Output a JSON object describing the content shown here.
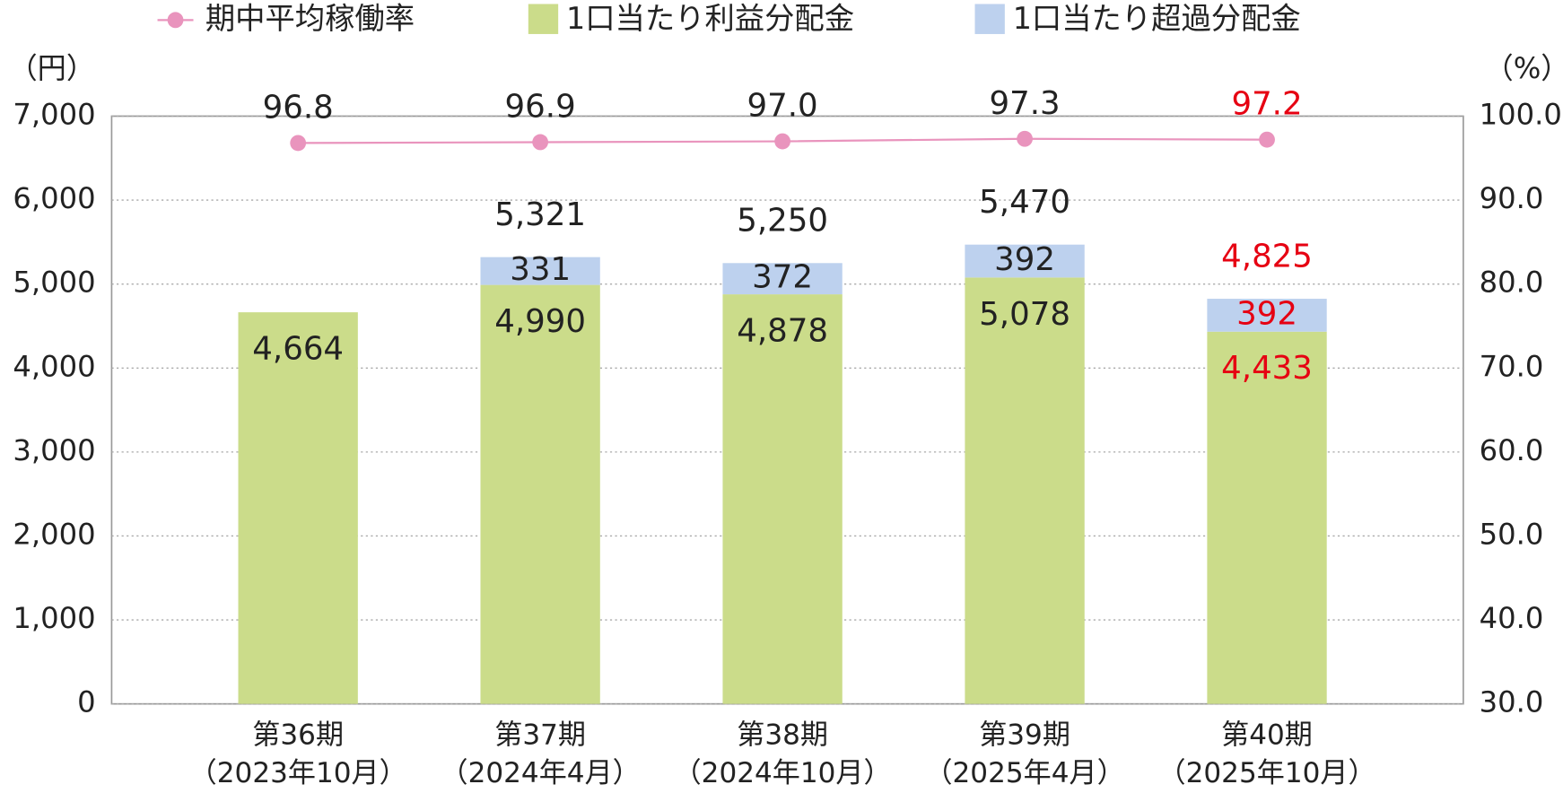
{
  "chart_data": {
    "type": "bar-line",
    "categories": [
      "第36期",
      "第37期",
      "第38期",
      "第39期",
      "第40期"
    ],
    "category_periods": [
      "（2023年10月）",
      "（2024年4月）",
      "（2024年10月）",
      "（2025年4月）",
      "（2025年10月）"
    ],
    "y_label": "（円）",
    "y2_label": "（%）",
    "series": [
      {
        "name": "1口当たり利益分配金",
        "color": "#cbdc8a",
        "kind": "bar",
        "values": [
          4664,
          4990,
          4878,
          5078,
          4433
        ],
        "value_labels": [
          "4,664",
          "4,990",
          "4,878",
          "5,078",
          "4,433"
        ]
      },
      {
        "name": "1口当たり超過分配金",
        "color": "#bdd1ee",
        "kind": "bar",
        "values": [
          null,
          331,
          372,
          392,
          392
        ],
        "value_labels": [
          null,
          "331",
          "372",
          "392",
          "392"
        ]
      },
      {
        "name": "期中平均稼働率",
        "color": "#e994bd",
        "kind": "line",
        "axis": "y2",
        "values": [
          96.8,
          96.9,
          97.0,
          97.3,
          97.2
        ],
        "value_labels": [
          "96.8",
          "96.9",
          "97.0",
          "97.3",
          "97.2"
        ]
      }
    ],
    "totals": [
      null,
      5321,
      5250,
      5470,
      4825
    ],
    "total_labels": [
      null,
      "5,321",
      "5,250",
      "5,470",
      "4,825"
    ],
    "highlight_index": 4,
    "highlight_color": "#e60012",
    "ylim": [
      0,
      7000
    ],
    "yticks": [
      0,
      {
        "value": 1000,
        "label": "1,000"
      },
      {
        "value": 2000,
        "label": "2,000"
      },
      {
        "value": 3000,
        "label": "3,000"
      },
      {
        "value": 4000,
        "label": "4,000"
      },
      {
        "value": 5000,
        "label": "5,000"
      },
      {
        "value": 6000,
        "label": "6,000"
      },
      {
        "value": 7000,
        "label": "7,000"
      }
    ],
    "y2lim": [
      30,
      100
    ],
    "y2ticks": [
      {
        "value": 30,
        "label": "30.0"
      },
      {
        "value": 40,
        "label": "40.0"
      },
      {
        "value": 50,
        "label": "50.0"
      },
      {
        "value": 60,
        "label": "60.0"
      },
      {
        "value": 70,
        "label": "70.0"
      },
      {
        "value": 80,
        "label": "80.0"
      },
      {
        "value": 90,
        "label": "90.0"
      },
      {
        "value": 100,
        "label": "100.0"
      }
    ],
    "grid": true
  }
}
